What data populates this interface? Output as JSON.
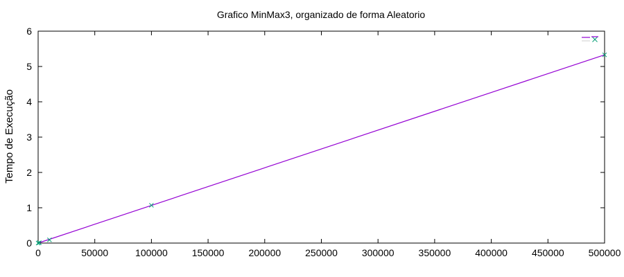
{
  "chart_data": {
    "type": "line",
    "title": "Grafico MinMax3, organizado de forma Aleatorio",
    "xlabel": "",
    "ylabel": "Tempo de Execução",
    "xlim": [
      0,
      500000
    ],
    "ylim": [
      0,
      6
    ],
    "x_ticks": [
      0,
      50000,
      100000,
      150000,
      200000,
      250000,
      300000,
      350000,
      400000,
      450000,
      500000
    ],
    "y_ticks": [
      0,
      1,
      2,
      3,
      4,
      5,
      6
    ],
    "x_tick_labels": [
      "0",
      "50000",
      "100000",
      "150000",
      "200000",
      "250000",
      "300000",
      "350000",
      "400000",
      "450000",
      "500000"
    ],
    "y_tick_labels": [
      "0",
      "1",
      "2",
      "3",
      "4",
      "5",
      "6"
    ],
    "grid": false,
    "legend": "top-right",
    "series": [
      {
        "name": "",
        "style": "line",
        "color": "#9400d3",
        "points": [
          {
            "x": 0,
            "y": 0.0
          },
          {
            "x": 500000,
            "y": 5.33
          }
        ]
      },
      {
        "name": "",
        "style": "points",
        "marker": "x",
        "color": "#009e73",
        "points": [
          {
            "x": 0,
            "y": 0.0
          },
          {
            "x": 1000,
            "y": 0.01
          },
          {
            "x": 10000,
            "y": 0.09
          },
          {
            "x": 100000,
            "y": 1.07
          },
          {
            "x": 500000,
            "y": 5.33
          }
        ]
      }
    ]
  }
}
